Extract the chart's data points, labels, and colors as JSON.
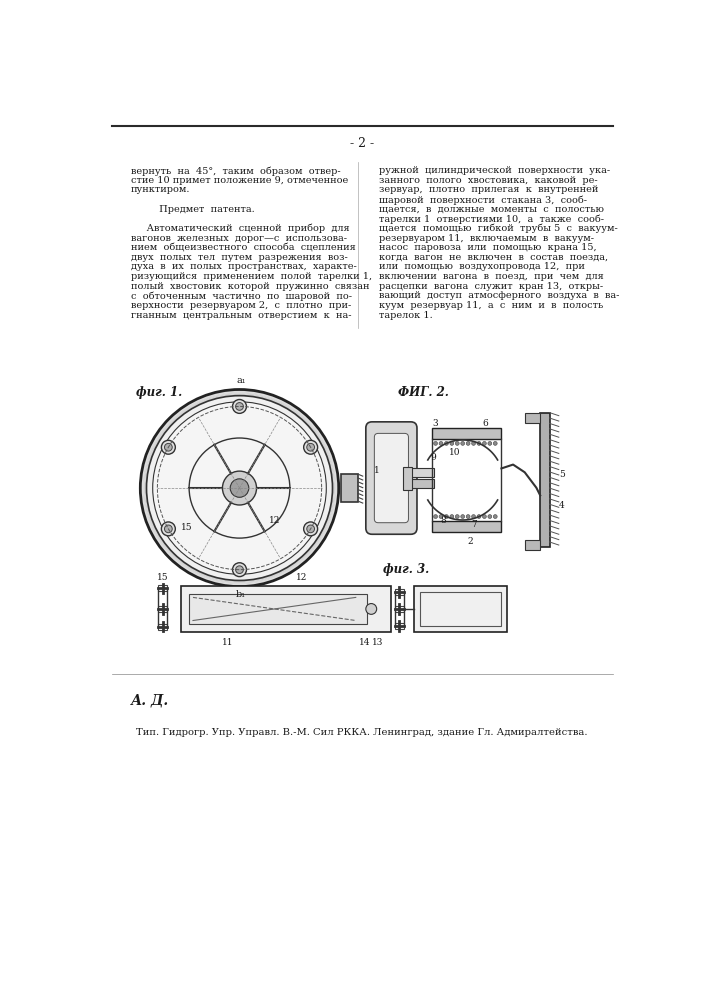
{
  "page_number": "- 2 -",
  "bg_color": "#ffffff",
  "text_color": "#1a1a1a",
  "top_line_color": "#2a2a2a",
  "col1_lines": [
    "вернуть  на  45°,  таким  образом  отвер-",
    "стие 10 примет положение 9, отмеченное",
    "пунктиром.",
    "",
    "         Предмет  патента.",
    "",
    "     Автоматический  сценной  прибор  для",
    "вагонов  железных  дорог—с  использова-",
    "нием  общеизвестного  способа  сцепления",
    "двух  полых  тел  путем  разрежения  воз-",
    "духа  в  их  полых  пространствах,  характе-",
    "ризующийся  применением  полой  тарелки 1,",
    "полый  хвостовик  которой  пружинно  связан",
    "с  обточенным  частично  по  шаровой  по-",
    "верхности  резервуаром 2,  с  плотно  при-",
    "гнанным  центральным  отверстием  к  на-"
  ],
  "col2_lines": [
    "ружной  цилиндрической  поверхности  ука-",
    "занного  полого  хвостовика,  каковой  ре-",
    "зервуар,  плотно  прилегая  к  внутренней",
    "шаровой  поверхности  стакана 3,  сооб-",
    "щается,  в  должные  моменты  с  полостью",
    "тарелки 1  отверстиями 10,  а  также  сооб-",
    "щается  помощью  гибкой  трубы 5  с  вакуум-",
    "резервуаром 11,  включаемым  в  вакуум-",
    "насос  паровоза  или  помощью  крана 15,",
    "когда  вагон  не  включен  в  состав  поезда,",
    "или  помощью  воздухопровода 12,  при",
    "включении  вагона  в  поезд,  при  чем  для",
    "расцепки  вагона  служит  кран 13,  откры-",
    "вающий  доступ  атмосферного  воздуха  в  ва-",
    "куум  резервуар 11,  а  с  ним  и  в  полость",
    "тарелок 1."
  ],
  "fig1_label": "фиг. 1.",
  "fig2_label": "ФИГ. 2.",
  "fig3_label": "фиг. 3.",
  "author_label": "А. Д.",
  "footer_text": "Тип. Гидрогр. Упр. Управл. В.-М. Сил РККА. Ленинград, здание Гл. Адмиралтейства."
}
